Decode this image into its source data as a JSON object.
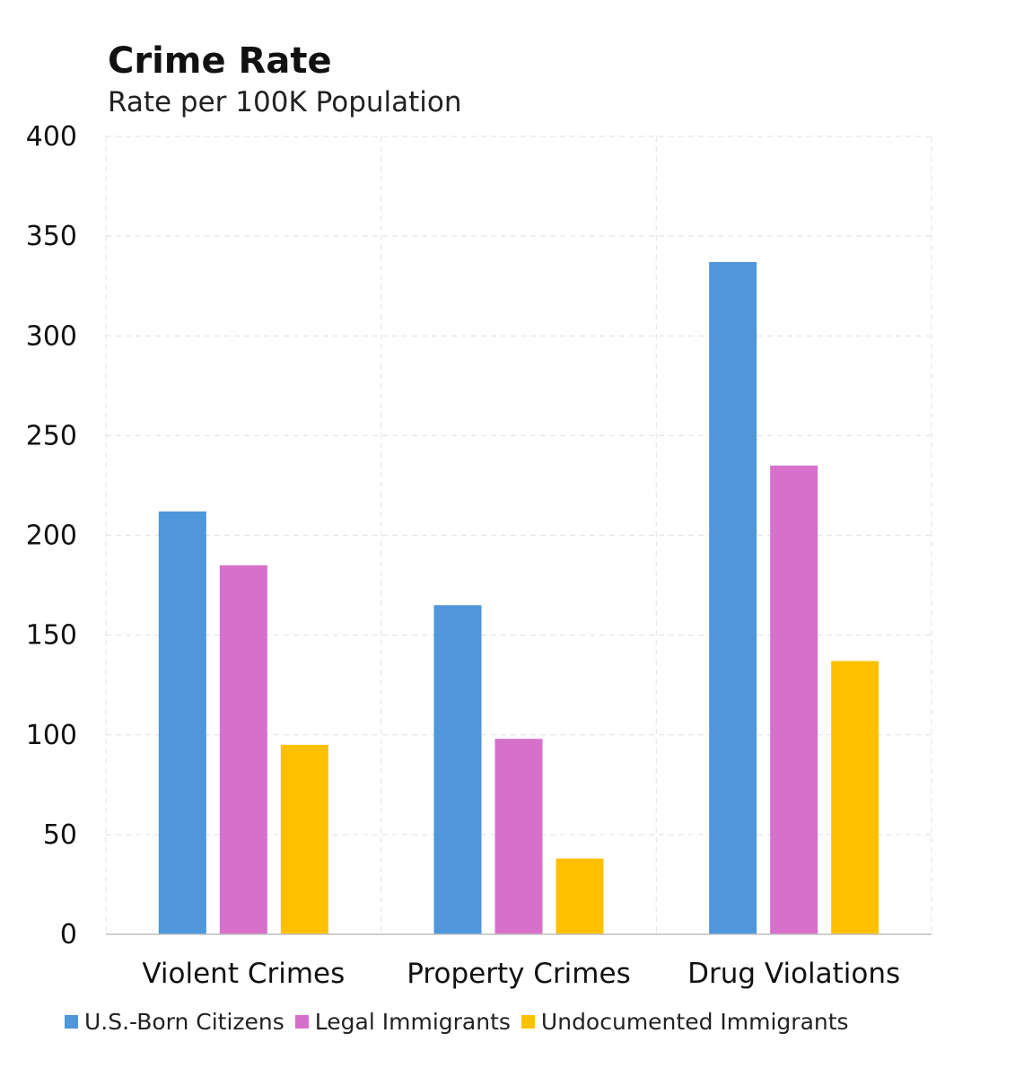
{
  "chart_data": {
    "type": "bar",
    "title": "Crime Rate",
    "subtitle": "Rate per 100K Population",
    "categories": [
      "Violent Crimes",
      "Property Crimes",
      "Drug Violations"
    ],
    "series": [
      {
        "name": "U.S.-Born Citizens",
        "color": "#4f96db",
        "values": [
          212,
          165,
          337
        ]
      },
      {
        "name": "Legal Immigrants",
        "color": "#d670cb",
        "values": [
          185,
          98,
          235
        ]
      },
      {
        "name": "Undocumented Immigrants",
        "color": "#ffc000",
        "values": [
          95,
          38,
          137
        ]
      }
    ],
    "ylim": [
      0,
      400
    ],
    "yticks": [
      "0",
      "50",
      "100",
      "150",
      "200",
      "250",
      "300",
      "350",
      "400"
    ],
    "grid": true,
    "legend": "bottom"
  }
}
